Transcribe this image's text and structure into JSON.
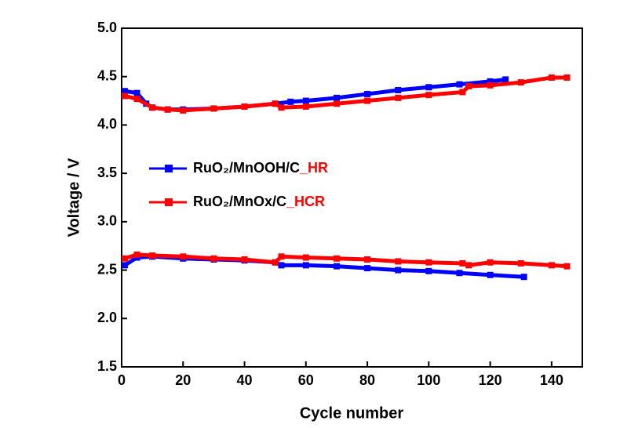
{
  "chart_data": {
    "type": "line",
    "x_label": "Cycle number",
    "y_label": "Voltage / V",
    "xlim": [
      0,
      150
    ],
    "ylim": [
      1.5,
      5.0
    ],
    "xticks": [
      0,
      20,
      40,
      60,
      80,
      100,
      120,
      140
    ],
    "yticks": [
      {
        "value": 1.5,
        "label": "1.5"
      },
      {
        "value": 2.0,
        "label": "2.0"
      },
      {
        "value": 2.5,
        "label": "2.5"
      },
      {
        "value": 3.0,
        "label": "3.0"
      },
      {
        "value": 3.5,
        "label": "3.5"
      },
      {
        "value": 4.0,
        "label": "4.0"
      },
      {
        "value": 4.5,
        "label": "4.5"
      },
      {
        "value": 5.0,
        "label": "5.0"
      }
    ],
    "legend": "upper-left",
    "series": [
      {
        "name": "RuO₂/MnOOH/C_HR",
        "color": "#0000ff",
        "upper": {
          "x": [
            1,
            5,
            8,
            10,
            15,
            20,
            30,
            40,
            50,
            55,
            60,
            70,
            80,
            90,
            100,
            110,
            120,
            125
          ],
          "values": [
            4.35,
            4.33,
            4.22,
            4.18,
            4.16,
            4.16,
            4.17,
            4.19,
            4.22,
            4.24,
            4.25,
            4.28,
            4.32,
            4.36,
            4.39,
            4.42,
            4.45,
            4.47
          ]
        },
        "lower": {
          "x": [
            1,
            5,
            10,
            20,
            30,
            40,
            50,
            52,
            60,
            70,
            80,
            90,
            100,
            110,
            120,
            131
          ],
          "values": [
            2.55,
            2.63,
            2.64,
            2.62,
            2.61,
            2.6,
            2.58,
            2.55,
            2.55,
            2.54,
            2.52,
            2.5,
            2.49,
            2.47,
            2.45,
            2.43
          ]
        }
      },
      {
        "name": "RuO₂/MnOx/C_HCR",
        "color": "#ff0000",
        "upper": {
          "x": [
            1,
            5,
            10,
            15,
            20,
            30,
            40,
            50,
            52,
            60,
            70,
            80,
            90,
            100,
            111,
            113,
            120,
            130,
            140,
            145
          ],
          "values": [
            4.3,
            4.27,
            4.18,
            4.16,
            4.15,
            4.17,
            4.19,
            4.22,
            4.18,
            4.19,
            4.22,
            4.25,
            4.28,
            4.31,
            4.34,
            4.4,
            4.41,
            4.44,
            4.49,
            4.49
          ]
        },
        "lower": {
          "x": [
            1,
            5,
            10,
            20,
            30,
            40,
            50,
            52,
            60,
            70,
            80,
            90,
            100,
            111,
            113,
            120,
            130,
            140,
            145
          ],
          "values": [
            2.62,
            2.66,
            2.65,
            2.64,
            2.62,
            2.61,
            2.58,
            2.64,
            2.63,
            2.62,
            2.61,
            2.59,
            2.58,
            2.57,
            2.55,
            2.58,
            2.57,
            2.55,
            2.54
          ]
        }
      }
    ]
  }
}
